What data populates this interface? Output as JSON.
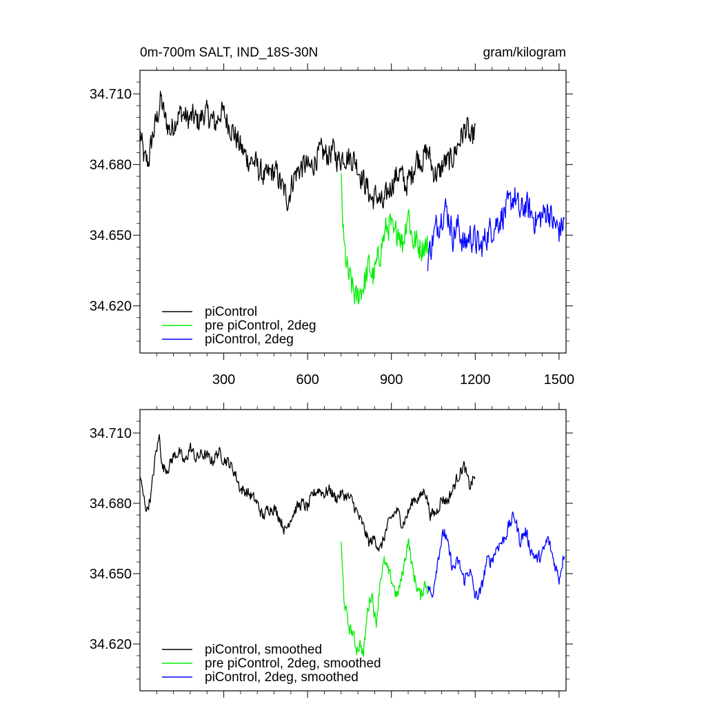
{
  "header": {
    "left_title": "0m-700m SALT, IND_18S-30N",
    "right_title": "gram/kilogram"
  },
  "colors": {
    "piControl": "#000000",
    "pre_piControl_2deg": "#00ee00",
    "piControl_2deg": "#0000ff"
  },
  "chart_data": [
    {
      "type": "line",
      "panel": "top",
      "title": "0m-700m SALT, IND_18S-30N",
      "units_label": "gram/kilogram",
      "xlim": [
        0,
        1525
      ],
      "ylim": [
        34.6,
        34.72
      ],
      "x_ticks": [
        300,
        600,
        900,
        1200,
        1500
      ],
      "x_tick_labels": [
        "300",
        "600",
        "900",
        "1200",
        "1500"
      ],
      "y_ticks": [
        34.62,
        34.65,
        34.68,
        34.71
      ],
      "y_tick_labels": [
        "34.620",
        "34.650",
        "34.680",
        "34.710"
      ],
      "grid": false,
      "legend_position": "bottom-left",
      "series": [
        {
          "name": "piControl",
          "color": "#000000",
          "noise": 0.0075,
          "points": [
            [
              1,
              34.693
            ],
            [
              15,
              34.682
            ],
            [
              30,
              34.681
            ],
            [
              45,
              34.692
            ],
            [
              60,
              34.699
            ],
            [
              75,
              34.708
            ],
            [
              90,
              34.699
            ],
            [
              110,
              34.694
            ],
            [
              130,
              34.7
            ],
            [
              150,
              34.702
            ],
            [
              170,
              34.699
            ],
            [
              190,
              34.7
            ],
            [
              210,
              34.698
            ],
            [
              230,
              34.702
            ],
            [
              250,
              34.7
            ],
            [
              270,
              34.697
            ],
            [
              290,
              34.703
            ],
            [
              310,
              34.699
            ],
            [
              330,
              34.695
            ],
            [
              350,
              34.69
            ],
            [
              370,
              34.685
            ],
            [
              390,
              34.682
            ],
            [
              410,
              34.681
            ],
            [
              430,
              34.677
            ],
            [
              450,
              34.674
            ],
            [
              470,
              34.677
            ],
            [
              490,
              34.676
            ],
            [
              510,
              34.67
            ],
            [
              530,
              34.665
            ],
            [
              550,
              34.675
            ],
            [
              570,
              34.678
            ],
            [
              590,
              34.68
            ],
            [
              610,
              34.678
            ],
            [
              630,
              34.683
            ],
            [
              650,
              34.685
            ],
            [
              670,
              34.684
            ],
            [
              690,
              34.686
            ],
            [
              710,
              34.682
            ],
            [
              730,
              34.684
            ],
            [
              750,
              34.683
            ],
            [
              770,
              34.682
            ],
            [
              790,
              34.676
            ],
            [
              810,
              34.671
            ],
            [
              830,
              34.665
            ],
            [
              850,
              34.667
            ],
            [
              870,
              34.662
            ],
            [
              890,
              34.669
            ],
            [
              910,
              34.674
            ],
            [
              930,
              34.677
            ],
            [
              950,
              34.671
            ],
            [
              970,
              34.675
            ],
            [
              990,
              34.683
            ],
            [
              1010,
              34.682
            ],
            [
              1030,
              34.686
            ],
            [
              1050,
              34.677
            ],
            [
              1070,
              34.676
            ],
            [
              1090,
              34.681
            ],
            [
              1110,
              34.681
            ],
            [
              1130,
              34.686
            ],
            [
              1150,
              34.692
            ],
            [
              1170,
              34.696
            ],
            [
              1185,
              34.689
            ],
            [
              1200,
              34.695
            ]
          ]
        },
        {
          "name": "pre piControl, 2deg",
          "color": "#00ee00",
          "noise": 0.0085,
          "points": [
            [
              720,
              34.672
            ],
            [
              730,
              34.645
            ],
            [
              745,
              34.633
            ],
            [
              760,
              34.628
            ],
            [
              775,
              34.622
            ],
            [
              790,
              34.627
            ],
            [
              805,
              34.63
            ],
            [
              820,
              34.637
            ],
            [
              835,
              34.632
            ],
            [
              850,
              34.638
            ],
            [
              865,
              34.646
            ],
            [
              880,
              34.652
            ],
            [
              895,
              34.655
            ],
            [
              910,
              34.648
            ],
            [
              925,
              34.654
            ],
            [
              940,
              34.646
            ],
            [
              960,
              34.661
            ],
            [
              975,
              34.648
            ],
            [
              990,
              34.647
            ],
            [
              1005,
              34.645
            ],
            [
              1020,
              34.646
            ],
            [
              1035,
              34.644
            ]
          ]
        },
        {
          "name": "piControl, 2deg",
          "color": "#0000ff",
          "noise": 0.0085,
          "points": [
            [
              1030,
              34.64
            ],
            [
              1045,
              34.647
            ],
            [
              1060,
              34.653
            ],
            [
              1075,
              34.657
            ],
            [
              1090,
              34.662
            ],
            [
              1105,
              34.658
            ],
            [
              1120,
              34.65
            ],
            [
              1140,
              34.654
            ],
            [
              1160,
              34.645
            ],
            [
              1180,
              34.65
            ],
            [
              1200,
              34.648
            ],
            [
              1220,
              34.644
            ],
            [
              1240,
              34.65
            ],
            [
              1260,
              34.653
            ],
            [
              1280,
              34.656
            ],
            [
              1300,
              34.659
            ],
            [
              1320,
              34.662
            ],
            [
              1340,
              34.667
            ],
            [
              1360,
              34.659
            ],
            [
              1380,
              34.663
            ],
            [
              1400,
              34.659
            ],
            [
              1420,
              34.656
            ],
            [
              1440,
              34.658
            ],
            [
              1460,
              34.661
            ],
            [
              1480,
              34.655
            ],
            [
              1500,
              34.652
            ],
            [
              1520,
              34.656
            ]
          ]
        }
      ]
    },
    {
      "type": "line",
      "panel": "bottom",
      "xlim": [
        0,
        1525
      ],
      "ylim": [
        34.6,
        34.72
      ],
      "x_ticks": [
        300,
        600,
        900,
        1200,
        1500
      ],
      "y_ticks": [
        34.62,
        34.65,
        34.68,
        34.71
      ],
      "y_tick_labels": [
        "34.620",
        "34.650",
        "34.680",
        "34.710"
      ],
      "grid": false,
      "legend_position": "bottom-left",
      "series": [
        {
          "name": "piControl, smoothed",
          "color": "#000000",
          "noise": 0.0035,
          "points": [
            [
              1,
              34.692
            ],
            [
              10,
              34.684
            ],
            [
              25,
              34.677
            ],
            [
              40,
              34.684
            ],
            [
              55,
              34.7
            ],
            [
              70,
              34.709
            ],
            [
              80,
              34.695
            ],
            [
              100,
              34.695
            ],
            [
              120,
              34.7
            ],
            [
              140,
              34.702
            ],
            [
              160,
              34.697
            ],
            [
              180,
              34.704
            ],
            [
              200,
              34.699
            ],
            [
              220,
              34.701
            ],
            [
              240,
              34.7
            ],
            [
              260,
              34.698
            ],
            [
              280,
              34.702
            ],
            [
              300,
              34.699
            ],
            [
              320,
              34.697
            ],
            [
              340,
              34.693
            ],
            [
              360,
              34.686
            ],
            [
              380,
              34.685
            ],
            [
              400,
              34.683
            ],
            [
              420,
              34.68
            ],
            [
              440,
              34.674
            ],
            [
              460,
              34.678
            ],
            [
              480,
              34.678
            ],
            [
              500,
              34.674
            ],
            [
              520,
              34.668
            ],
            [
              540,
              34.674
            ],
            [
              560,
              34.678
            ],
            [
              580,
              34.68
            ],
            [
              600,
              34.678
            ],
            [
              620,
              34.684
            ],
            [
              640,
              34.686
            ],
            [
              660,
              34.684
            ],
            [
              680,
              34.686
            ],
            [
              700,
              34.682
            ],
            [
              720,
              34.684
            ],
            [
              740,
              34.683
            ],
            [
              760,
              34.681
            ],
            [
              780,
              34.675
            ],
            [
              800,
              34.67
            ],
            [
              820,
              34.663
            ],
            [
              840,
              34.665
            ],
            [
              860,
              34.66
            ],
            [
              880,
              34.668
            ],
            [
              900,
              34.674
            ],
            [
              920,
              34.677
            ],
            [
              940,
              34.671
            ],
            [
              960,
              34.676
            ],
            [
              980,
              34.682
            ],
            [
              1000,
              34.682
            ],
            [
              1020,
              34.686
            ],
            [
              1040,
              34.675
            ],
            [
              1060,
              34.676
            ],
            [
              1080,
              34.682
            ],
            [
              1100,
              34.681
            ],
            [
              1120,
              34.686
            ],
            [
              1140,
              34.692
            ],
            [
              1160,
              34.696
            ],
            [
              1180,
              34.687
            ],
            [
              1200,
              34.692
            ]
          ]
        },
        {
          "name": "pre piControl, 2deg, smoothed",
          "color": "#00ee00",
          "noise": 0.004,
          "points": [
            [
              720,
              34.662
            ],
            [
              730,
              34.64
            ],
            [
              745,
              34.628
            ],
            [
              760,
              34.625
            ],
            [
              775,
              34.618
            ],
            [
              790,
              34.62
            ],
            [
              800,
              34.615
            ],
            [
              815,
              34.635
            ],
            [
              830,
              34.642
            ],
            [
              845,
              34.628
            ],
            [
              860,
              34.648
            ],
            [
              875,
              34.655
            ],
            [
              890,
              34.65
            ],
            [
              905,
              34.646
            ],
            [
              920,
              34.64
            ],
            [
              935,
              34.647
            ],
            [
              950,
              34.657
            ],
            [
              960,
              34.665
            ],
            [
              975,
              34.652
            ],
            [
              990,
              34.645
            ],
            [
              1005,
              34.64
            ],
            [
              1020,
              34.646
            ],
            [
              1035,
              34.643
            ]
          ]
        },
        {
          "name": "piControl, 2deg, smoothed",
          "color": "#0000ff",
          "noise": 0.004,
          "points": [
            [
              1030,
              34.645
            ],
            [
              1045,
              34.64
            ],
            [
              1060,
              34.652
            ],
            [
              1075,
              34.662
            ],
            [
              1090,
              34.668
            ],
            [
              1105,
              34.66
            ],
            [
              1120,
              34.652
            ],
            [
              1140,
              34.655
            ],
            [
              1160,
              34.647
            ],
            [
              1180,
              34.652
            ],
            [
              1200,
              34.64
            ],
            [
              1220,
              34.642
            ],
            [
              1240,
              34.655
            ],
            [
              1260,
              34.656
            ],
            [
              1280,
              34.662
            ],
            [
              1300,
              34.664
            ],
            [
              1320,
              34.67
            ],
            [
              1340,
              34.675
            ],
            [
              1360,
              34.664
            ],
            [
              1380,
              34.668
            ],
            [
              1400,
              34.66
            ],
            [
              1420,
              34.656
            ],
            [
              1440,
              34.658
            ],
            [
              1460,
              34.665
            ],
            [
              1480,
              34.656
            ],
            [
              1500,
              34.648
            ],
            [
              1520,
              34.66
            ]
          ]
        }
      ]
    }
  ]
}
